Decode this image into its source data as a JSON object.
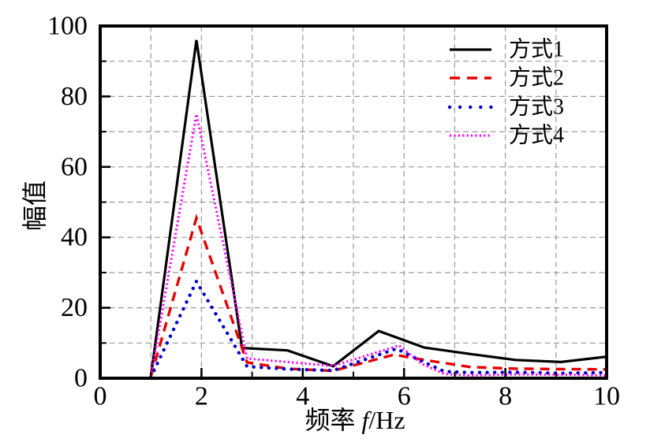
{
  "chart_data": {
    "type": "line",
    "title": "",
    "xlabel": "频率 f/Hz",
    "xlabel_parts": {
      "prefix": "频率 ",
      "italic_var": "f",
      "suffix": "/Hz"
    },
    "ylabel": "幅值",
    "xlim": [
      0,
      10
    ],
    "ylim": [
      0,
      100
    ],
    "x_major_ticks": [
      0,
      2,
      4,
      6,
      8,
      10
    ],
    "x_minor_ticks": [
      1,
      3,
      5,
      7,
      9
    ],
    "y_major_ticks": [
      0,
      20,
      40,
      60,
      80,
      100
    ],
    "y_minor_ticks": [
      10,
      30,
      50,
      70,
      90
    ],
    "grid": {
      "show": true,
      "x_interval": 1,
      "y_interval": 10,
      "line_style": "dashed",
      "color": "#9a9a9a"
    },
    "frame_color": "#000000",
    "background": "#ffffff",
    "legend": {
      "position": "upper-right",
      "border": false
    },
    "series": [
      {
        "name": "方式1",
        "color": "#000000",
        "line_style": "solid",
        "points": [
          [
            1.0,
            0.4
          ],
          [
            1.9,
            96
          ],
          [
            2.8,
            8.6
          ],
          [
            3.7,
            7.9
          ],
          [
            4.6,
            3.4
          ],
          [
            5.5,
            13.4
          ],
          [
            6.4,
            8.7
          ],
          [
            7.3,
            6.9
          ],
          [
            8.2,
            5.2
          ],
          [
            9.1,
            4.6
          ],
          [
            10.0,
            6.1
          ]
        ]
      },
      {
        "name": "方式2",
        "color": "#e60000",
        "line_style": "dashed",
        "points": [
          [
            1.0,
            0.4
          ],
          [
            1.9,
            45.5
          ],
          [
            2.9,
            4.5
          ],
          [
            3.7,
            2.7
          ],
          [
            4.6,
            2.1
          ],
          [
            5.8,
            6.7
          ],
          [
            6.4,
            5.2
          ],
          [
            7.3,
            3.2
          ],
          [
            8.2,
            2.7
          ],
          [
            9.1,
            2.6
          ],
          [
            10.0,
            2.5
          ]
        ]
      },
      {
        "name": "方式3",
        "color": "#0000cc",
        "line_style": "dotted",
        "points": [
          [
            1.0,
            0.3
          ],
          [
            1.9,
            27.5
          ],
          [
            2.9,
            3.3
          ],
          [
            3.7,
            2.6
          ],
          [
            4.6,
            2.2
          ],
          [
            5.85,
            8.4
          ],
          [
            6.3,
            5.2
          ],
          [
            6.8,
            1.9
          ],
          [
            7.3,
            1.6
          ],
          [
            8.2,
            1.7
          ],
          [
            9.1,
            1.4
          ],
          [
            10.0,
            1.6
          ]
        ]
      },
      {
        "name": "方式4",
        "color": "#ff00ff",
        "line_style": "densely-dotted",
        "points": [
          [
            1.0,
            0.3
          ],
          [
            1.9,
            75
          ],
          [
            2.9,
            5.6
          ],
          [
            3.7,
            4.6
          ],
          [
            4.6,
            3.5
          ],
          [
            5.9,
            9.3
          ],
          [
            6.35,
            4.1
          ],
          [
            6.8,
            1.2
          ],
          [
            7.3,
            0.8
          ],
          [
            8.2,
            1.1
          ],
          [
            9.1,
            1.0
          ],
          [
            10.0,
            0.8
          ]
        ]
      }
    ]
  }
}
